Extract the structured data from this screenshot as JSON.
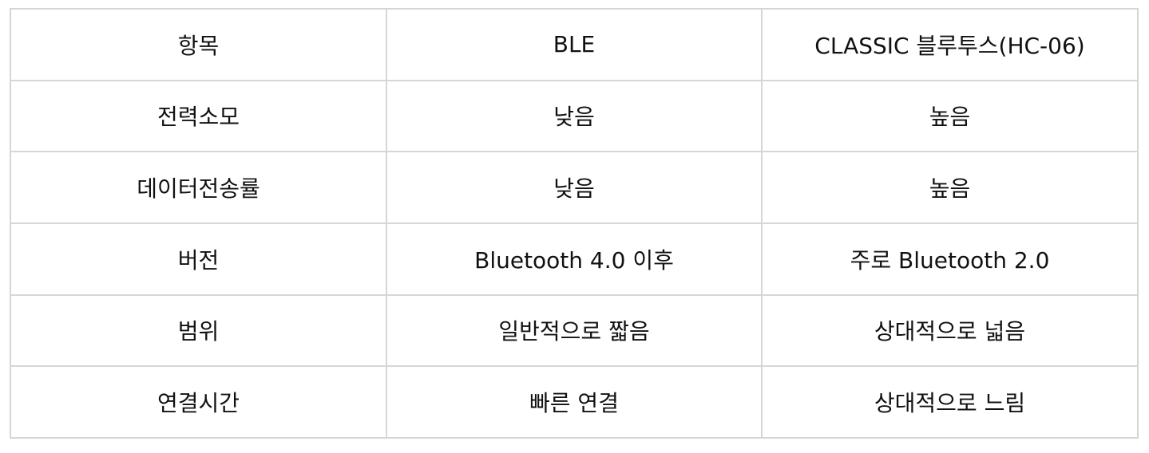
{
  "table": {
    "header": [
      "항목",
      "BLE",
      "CLASSIC 블루투스(HC-06)"
    ],
    "rows": [
      [
        "전력소모",
        "낮음",
        "높음"
      ],
      [
        "데이터전송률",
        "낮음",
        "높음"
      ],
      [
        "버전",
        "Bluetooth 4.0 이후",
        "주로 Bluetooth 2.0"
      ],
      [
        "범위",
        "일반적으로 짧음",
        "상대적으로 넓음"
      ],
      [
        "연결시간",
        "빠른 연결",
        "상대적으로 느림"
      ]
    ]
  }
}
